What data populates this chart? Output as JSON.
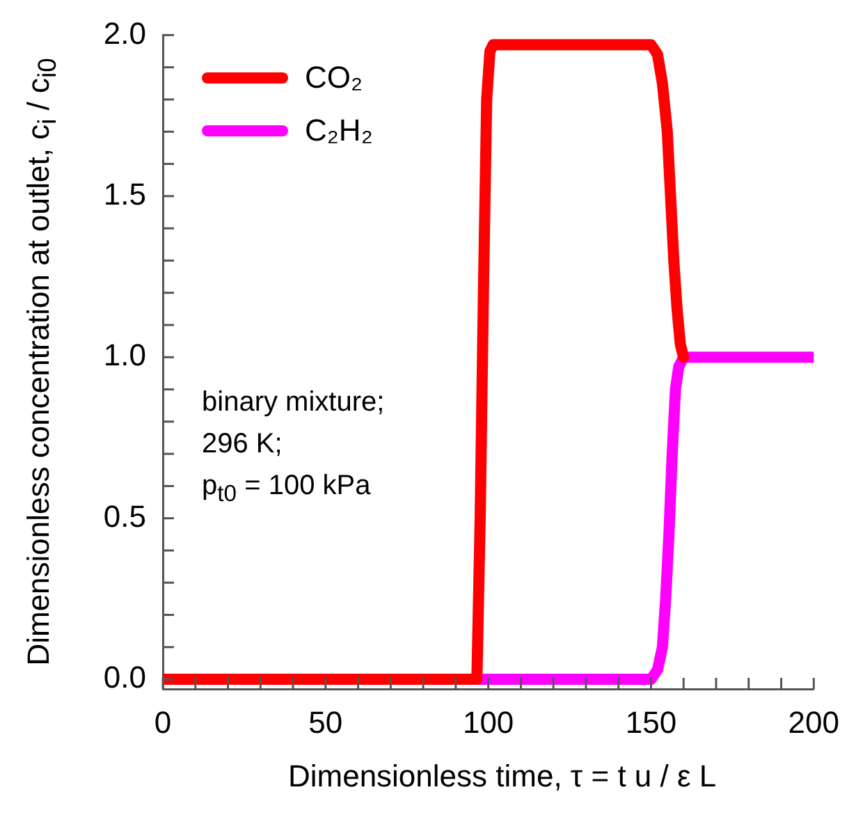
{
  "chart_data": {
    "type": "line",
    "xlabel": "Dimensionless time, τ = t u / ε L",
    "ylabel": "Dimensionless concentration at outlet, c$_{i}$ / c$_{i0}$",
    "annotations": [
      "binary mixture;",
      "296 K;",
      "p$_{t0}$ = 100 kPa"
    ],
    "series": [
      {
        "name": "CO₂",
        "color": "#ff0000",
        "x": [
          0,
          96.5,
          97.5,
          98.5,
          99.5,
          100.5,
          101.5,
          150,
          152,
          153.5,
          155,
          156,
          157,
          158,
          159,
          160
        ],
        "values": [
          0,
          0,
          0.5,
          1.2,
          1.8,
          1.95,
          1.97,
          1.97,
          1.94,
          1.85,
          1.7,
          1.5,
          1.3,
          1.15,
          1.04,
          1.0
        ]
      },
      {
        "name": "C₂H₂",
        "color": "#ff00ff",
        "x": [
          0,
          150,
          152,
          153.5,
          154.5,
          155.5,
          156.5,
          157.5,
          158.5,
          160,
          200
        ],
        "values": [
          0,
          0,
          0.03,
          0.1,
          0.25,
          0.45,
          0.7,
          0.9,
          0.97,
          1.0,
          1.0
        ]
      }
    ],
    "xlim": [
      0,
      200
    ],
    "ylim": [
      -0.03,
      2.0
    ],
    "xticks": [
      0,
      {
        "value": 10,
        "label": null
      },
      {
        "value": 20,
        "label": null
      },
      {
        "value": 30,
        "label": null
      },
      {
        "value": 40,
        "label": null
      },
      50,
      {
        "value": 60,
        "label": null
      },
      {
        "value": 70,
        "label": null
      },
      {
        "value": 80,
        "label": null
      },
      {
        "value": 90,
        "label": null
      },
      100,
      {
        "value": 110,
        "label": null
      },
      {
        "value": 120,
        "label": null
      },
      {
        "value": 130,
        "label": null
      },
      {
        "value": 140,
        "label": null
      },
      150,
      {
        "value": 160,
        "label": null
      },
      {
        "value": 170,
        "label": null
      },
      {
        "value": 180,
        "label": null
      },
      {
        "value": 190,
        "label": null
      },
      200
    ],
    "yticks": [
      {
        "value": 0,
        "label": "0.0"
      },
      {
        "value": 0.1,
        "label": null
      },
      {
        "value": 0.2,
        "label": null
      },
      {
        "value": 0.3,
        "label": null
      },
      {
        "value": 0.4,
        "label": null
      },
      {
        "value": 0.5,
        "label": "0.5"
      },
      {
        "value": 0.6,
        "label": null
      },
      {
        "value": 0.7,
        "label": null
      },
      {
        "value": 0.8,
        "label": null
      },
      {
        "value": 0.9,
        "label": null
      },
      {
        "value": 1.0,
        "label": "1.0"
      },
      {
        "value": 1.1,
        "label": null
      },
      {
        "value": 1.2,
        "label": null
      },
      {
        "value": 1.3,
        "label": null
      },
      {
        "value": 1.4,
        "label": null
      },
      {
        "value": 1.5,
        "label": "1.5"
      },
      {
        "value": 1.6,
        "label": null
      },
      {
        "value": 1.7,
        "label": null
      },
      {
        "value": 1.8,
        "label": null
      },
      {
        "value": 1.9,
        "label": null
      },
      {
        "value": 2.0,
        "label": "2.0"
      }
    ],
    "grid": false,
    "legend": "top left",
    "marker": "none",
    "line_style": "solid"
  }
}
